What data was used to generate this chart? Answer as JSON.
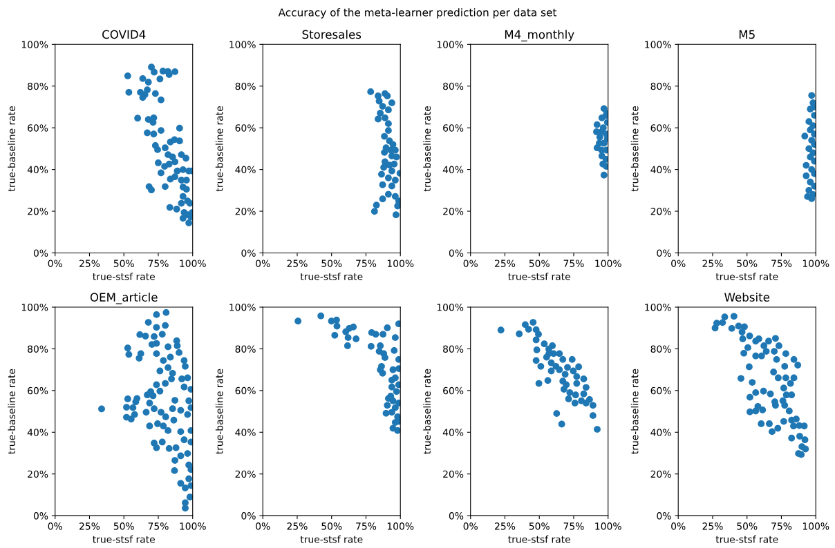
{
  "chart_data": [
    {
      "type": "scatter",
      "title": "COVID4",
      "xlabel": "true-stsf rate",
      "ylabel": "true-baseline rate",
      "color": "#1f77b4",
      "marker": "circle",
      "annotations": [
        "Accuracy of the meta-learner prediction per data set"
      ],
      "x": [
        52.8,
        53.6,
        70,
        72,
        78.4,
        82,
        82.9,
        87.1,
        76.2,
        63.7,
        67.8,
        62,
        65.3,
        67,
        63.7,
        72.9,
        77,
        60,
        67.8,
        71.7,
        71.2,
        67,
        71.7,
        77,
        90.5,
        72.9,
        74.5,
        80,
        83.8,
        86.8,
        90.5,
        82.1,
        85.4,
        91.8,
        95.1,
        75,
        79.6,
        82.9,
        87.1,
        77,
        88.8,
        93,
        97.2,
        99.7,
        83.8,
        87.1,
        91.8,
        95.5,
        68.3,
        70,
        80,
        93,
        95.5,
        93,
        96.3,
        98,
        83.4,
        88.4,
        91.8,
        93.8,
        96.3,
        98.8,
        93,
        97.2,
        99.7
      ],
      "values": [
        84.9,
        77,
        89.1,
        86.7,
        87.2,
        87,
        85.5,
        86.9,
        83.4,
        83.6,
        81.9,
        77,
        75.9,
        78.2,
        74.5,
        76.4,
        73.4,
        64.6,
        64,
        64.8,
        62.6,
        57.6,
        57,
        58.7,
        59.8,
        51.5,
        49.5,
        50.4,
        53.2,
        54.3,
        53.7,
        47.1,
        46,
        47.1,
        45.4,
        43.2,
        41.5,
        42.6,
        43.7,
        38.4,
        39.3,
        39.9,
        39.3,
        39.3,
        35.4,
        36.5,
        34.9,
        34.9,
        31.8,
        30.2,
        31.8,
        31.6,
        30.5,
        27.1,
        24.9,
        23.8,
        21.8,
        21,
        23.8,
        19.4,
        18.3,
        17.2,
        16.6,
        14.4,
        19.4
      ],
      "xlim": [
        0,
        100
      ],
      "ylim": [
        0,
        100
      ],
      "xticks": [
        {
          "value": 0,
          "label": "0%"
        },
        {
          "value": 25,
          "label": "25%"
        },
        {
          "value": 50,
          "label": "50%"
        },
        {
          "value": 75,
          "label": "75%"
        },
        {
          "value": 100,
          "label": "100%"
        }
      ],
      "yticks": [
        {
          "value": 0,
          "label": "0%"
        },
        {
          "value": 20,
          "label": "20%"
        },
        {
          "value": 40,
          "label": "40%"
        },
        {
          "value": 60,
          "label": "60%"
        },
        {
          "value": 80,
          "label": "80%"
        },
        {
          "value": 100,
          "label": "100%"
        }
      ]
    },
    {
      "type": "scatter",
      "title": "Storesales",
      "xlabel": "true-stsf rate",
      "ylabel": "true-baseline rate",
      "color": "#1f77b4",
      "marker": "circle",
      "x": [
        78.4,
        83.8,
        88.8,
        90.5,
        93.8,
        84.6,
        87.1,
        91.3,
        85.4,
        83.8,
        88.8,
        91.3,
        91.3,
        88.4,
        92.1,
        94.6,
        89.6,
        93,
        96.3,
        88.4,
        93.8,
        97.2,
        88.8,
        92.1,
        95.5,
        87.9,
        93.8,
        99.7,
        86.3,
        91.3,
        96.3,
        87.1,
        93.8,
        87.1,
        91.3,
        96.3,
        98.8,
        98,
        82.6,
        81.2,
        96.8
      ],
      "values": [
        77.3,
        75.3,
        76.4,
        75.3,
        72,
        72.8,
        70.3,
        68.6,
        67,
        64.2,
        64.8,
        62,
        58.7,
        55.9,
        53.7,
        52,
        50.4,
        49.3,
        49.3,
        48.2,
        46.5,
        46,
        43.7,
        42.1,
        42.6,
        41,
        39.3,
        38.2,
        37.7,
        36,
        34.9,
        32.7,
        32.1,
        25.9,
        28.1,
        27.1,
        24.9,
        22.5,
        22.9,
        19.9,
        18.3
      ],
      "xlim": [
        0,
        100
      ],
      "ylim": [
        0,
        100
      ],
      "xticks": [
        {
          "value": 0,
          "label": "0%"
        },
        {
          "value": 25,
          "label": "25%"
        },
        {
          "value": 50,
          "label": "50%"
        },
        {
          "value": 75,
          "label": "75%"
        },
        {
          "value": 100,
          "label": "100%"
        }
      ],
      "yticks": [
        {
          "value": 0,
          "label": "0%"
        },
        {
          "value": 20,
          "label": "20%"
        },
        {
          "value": 40,
          "label": "40%"
        },
        {
          "value": 60,
          "label": "60%"
        },
        {
          "value": 80,
          "label": "80%"
        },
        {
          "value": 100,
          "label": "100%"
        }
      ]
    },
    {
      "type": "scatter",
      "title": "M4_monthly",
      "xlabel": "true-stsf rate",
      "ylabel": "true-baseline rate",
      "color": "#1f77b4",
      "marker": "circle",
      "x": [
        97,
        95.5,
        98.5,
        92,
        99.5,
        91.6,
        95.3,
        98.7,
        97,
        92,
        95.3,
        98.7,
        95.5,
        98.5,
        96.2,
        98.7,
        97,
        93.6,
        99.5,
        94,
        96.5,
        99
      ],
      "values": [
        69.2,
        64.8,
        65.9,
        61.5,
        62.6,
        58.1,
        58.1,
        57,
        52.6,
        50.4,
        49.3,
        49.3,
        46.5,
        44.9,
        42.6,
        41.5,
        37.3,
        52.6,
        54.8,
        55.5,
        60,
        67
      ],
      "xlim": [
        0,
        100
      ],
      "ylim": [
        0,
        100
      ],
      "xticks": [
        {
          "value": 0,
          "label": "0%"
        },
        {
          "value": 25,
          "label": "25%"
        },
        {
          "value": 50,
          "label": "50%"
        },
        {
          "value": 75,
          "label": "75%"
        },
        {
          "value": 100,
          "label": "100%"
        }
      ],
      "yticks": [
        {
          "value": 0,
          "label": "0%"
        },
        {
          "value": 20,
          "label": "20%"
        },
        {
          "value": 40,
          "label": "40%"
        },
        {
          "value": 60,
          "label": "60%"
        },
        {
          "value": 80,
          "label": "80%"
        },
        {
          "value": 100,
          "label": "100%"
        }
      ]
    },
    {
      "type": "scatter",
      "title": "M5",
      "xlabel": "true-stsf rate",
      "ylabel": "true-baseline rate",
      "color": "#1f77b4",
      "marker": "circle",
      "x": [
        97,
        98,
        96,
        99,
        95,
        98,
        96,
        99,
        92,
        97,
        99,
        95,
        98,
        96,
        99,
        93,
        97,
        99,
        93,
        96,
        99,
        95,
        98,
        94,
        97,
        99
      ],
      "values": [
        75.5,
        72,
        69,
        66,
        63,
        61,
        59,
        57,
        56,
        54,
        52,
        50,
        48,
        46,
        44,
        42,
        40,
        38,
        37,
        34,
        32,
        30,
        28,
        27,
        26,
        70
      ],
      "xlim": [
        0,
        100
      ],
      "ylim": [
        0,
        100
      ],
      "xticks": [
        {
          "value": 0,
          "label": "0%"
        },
        {
          "value": 25,
          "label": "25%"
        },
        {
          "value": 50,
          "label": "50%"
        },
        {
          "value": 75,
          "label": "75%"
        },
        {
          "value": 100,
          "label": "100%"
        }
      ],
      "yticks": [
        {
          "value": 0,
          "label": "0%"
        },
        {
          "value": 20,
          "label": "20%"
        },
        {
          "value": 40,
          "label": "40%"
        },
        {
          "value": 60,
          "label": "60%"
        },
        {
          "value": 80,
          "label": "80%"
        },
        {
          "value": 100,
          "label": "100%"
        }
      ]
    },
    {
      "type": "scatter",
      "title": "OEM_article",
      "xlabel": "true-stsf rate",
      "ylabel": "true-baseline rate",
      "color": "#1f77b4",
      "marker": "circle",
      "x": [
        33.8,
        52.8,
        53.6,
        61.6,
        65.7,
        61.1,
        62.3,
        67.8,
        73.7,
        80.7,
        80.1,
        73.7,
        77.9,
        72,
        73.7,
        70.4,
        82.1,
        88.4,
        88.8,
        73.7,
        78.7,
        83.8,
        90.1,
        93.8,
        94.6,
        76.2,
        82.1,
        85.4,
        84.6,
        92.1,
        96.3,
        73.7,
        80.1,
        93.8,
        98.8,
        69.5,
        71.2,
        76.2,
        52.8,
        51.9,
        56.6,
        59.5,
        58.6,
        67,
        68.7,
        72,
        77,
        80.4,
        66.2,
        51.9,
        55.3,
        57.8,
        87.1,
        91.3,
        85.4,
        68.7,
        74.5,
        78.7,
        82.1,
        86.3,
        91.3,
        96.3,
        93.8,
        72,
        77.9,
        73.7,
        82.9,
        87.9,
        91.3,
        87.1,
        96.3,
        97.2,
        86.8,
        91.3,
        94.6,
        97.2,
        98.8,
        98,
        94.6,
        94.6,
        98.8,
        98.8,
        98.8,
        97.2,
        98.8
      ],
      "values": [
        51.2,
        80.4,
        77.3,
        86.8,
        86.1,
        75.5,
        77.7,
        92.7,
        96.4,
        97.4,
        91.2,
        90.3,
        87,
        85.9,
        82.6,
        82.1,
        81,
        83.9,
        81.5,
        77.7,
        74.4,
        76,
        78.2,
        74.4,
        71.6,
        69.4,
        71,
        68.3,
        65.6,
        65.6,
        66.1,
        62.8,
        63.4,
        61.7,
        60.6,
        59.5,
        57.5,
        59.7,
        56,
        52,
        51.8,
        56.2,
        54.6,
        57.9,
        54,
        51.3,
        49.6,
        47.4,
        49.6,
        47.2,
        46.3,
        48.5,
        55.3,
        50.5,
        51.3,
        43,
        44.1,
        43,
        40.8,
        45.8,
        40.3,
        48.5,
        36.4,
        34.8,
        35.3,
        32.6,
        32.2,
        32.6,
        28.7,
        26.5,
        29.8,
        24.3,
        21.6,
        15.5,
        13.3,
        17.7,
        14.4,
        8.9,
        6.2,
        3.6,
        40.8,
        35.3,
        51.8,
        55.1,
        22.1
      ],
      "xlim": [
        0,
        100
      ],
      "ylim": [
        0,
        100
      ],
      "xticks": [
        {
          "value": 0,
          "label": "0%"
        },
        {
          "value": 25,
          "label": "25%"
        },
        {
          "value": 50,
          "label": "50%"
        },
        {
          "value": 75,
          "label": "75%"
        },
        {
          "value": 100,
          "label": "100%"
        }
      ],
      "yticks": [
        {
          "value": 0,
          "label": "0%"
        },
        {
          "value": 20,
          "label": "20%"
        },
        {
          "value": 40,
          "label": "40%"
        },
        {
          "value": 60,
          "label": "60%"
        },
        {
          "value": 80,
          "label": "80%"
        },
        {
          "value": 100,
          "label": "100%"
        }
      ]
    },
    {
      "type": "scatter",
      "xlabel": "true-stsf rate",
      "ylabel": "true-baseline rate",
      "color": "#1f77b4",
      "marker": "circle",
      "x": [
        25.6,
        42.2,
        49.9,
        53.6,
        53.9,
        52.3,
        60.3,
        62.8,
        65.8,
        62,
        67.8,
        61.6,
        79.1,
        82.1,
        87.4,
        90.5,
        98.8,
        96.3,
        78.7,
        85.4,
        84.6,
        87.9,
        88.8,
        95.5,
        98.8,
        86.3,
        85.4,
        87.1,
        94.6,
        98.8,
        96.3,
        93.8,
        97.2,
        91.3,
        94.6,
        90.5,
        96.3,
        98.8,
        89.6,
        93.8,
        98,
        96.3,
        94.6,
        98,
        93,
        98.8,
        93.8,
        98.8
      ],
      "values": [
        93.3,
        95.8,
        93.3,
        93.8,
        90.9,
        86.5,
        88.2,
        89.8,
        90.5,
        85.4,
        84.8,
        81.5,
        87.8,
        87,
        87,
        90.1,
        92,
        85.4,
        81.2,
        81.5,
        78.8,
        77.7,
        75.8,
        79.2,
        74.9,
        71.6,
        70,
        68.3,
        70,
        70.5,
        66.1,
        61.7,
        59.5,
        56.2,
        55.1,
        52.9,
        51.8,
        54,
        49.1,
        49.6,
        47.4,
        44.7,
        41.9,
        40.8,
        57.3,
        62.8,
        65,
        45.2
      ],
      "xlim": [
        0,
        100
      ],
      "ylim": [
        0,
        100
      ],
      "xticks": [
        {
          "value": 0,
          "label": "0%"
        },
        {
          "value": 25,
          "label": "25%"
        },
        {
          "value": 50,
          "label": "50%"
        },
        {
          "value": 75,
          "label": "75%"
        },
        {
          "value": 100,
          "label": "100%"
        }
      ],
      "yticks": [
        {
          "value": 0,
          "label": "0%"
        },
        {
          "value": 20,
          "label": "20%"
        },
        {
          "value": 40,
          "label": "40%"
        },
        {
          "value": 60,
          "label": "60%"
        },
        {
          "value": 80,
          "label": "80%"
        },
        {
          "value": 100,
          "label": "100%"
        }
      ]
    },
    {
      "type": "scatter",
      "xlabel": "true-stsf rate",
      "ylabel": "true-baseline rate",
      "color": "#1f77b4",
      "marker": "circle",
      "x": [
        22.1,
        35.4,
        39.8,
        45.5,
        42.2,
        47.7,
        49.4,
        47.7,
        48.2,
        53.6,
        59.5,
        56.9,
        64.6,
        67.1,
        47.7,
        51.1,
        55.3,
        58.7,
        62.1,
        58.7,
        64.6,
        70.5,
        73.9,
        78.6,
        68.8,
        74.7,
        77.2,
        82.3,
        67.1,
        69.6,
        77.2,
        84,
        67.9,
        72.2,
        76.4,
        82.3,
        71.3,
        75.9,
        80.6,
        86.5,
        89,
        84,
        89,
        92.1,
        62.6,
        66.3,
        49.7,
        56.2,
        60.4,
        57
      ],
      "values": [
        89,
        87.2,
        91.6,
        92.7,
        89.4,
        89.2,
        87,
        84.3,
        79.5,
        82.4,
        81.5,
        79.9,
        77.7,
        74.9,
        74.4,
        71.6,
        76,
        73.3,
        71.6,
        69.4,
        70,
        71.1,
        74.9,
        71.4,
        67.8,
        69.4,
        66.7,
        65.6,
        64.5,
        62.8,
        63.4,
        61.5,
        60.6,
        59,
        57.9,
        58.4,
        56,
        54,
        55.1,
        55.7,
        52.9,
        54,
        48,
        41.4,
        49,
        43.9,
        63.4,
        64.8,
        77.7,
        77.7
      ],
      "xlim": [
        0,
        100
      ],
      "ylim": [
        0,
        100
      ],
      "xticks": [
        {
          "value": 0,
          "label": "0%"
        },
        {
          "value": 25,
          "label": "25%"
        },
        {
          "value": 50,
          "label": "50%"
        },
        {
          "value": 75,
          "label": "75%"
        },
        {
          "value": 100,
          "label": "100%"
        }
      ],
      "yticks": [
        {
          "value": 0,
          "label": "0%"
        },
        {
          "value": 20,
          "label": "20%"
        },
        {
          "value": 40,
          "label": "40%"
        },
        {
          "value": 60,
          "label": "60%"
        },
        {
          "value": 80,
          "label": "80%"
        },
        {
          "value": 100,
          "label": "100%"
        }
      ]
    },
    {
      "type": "scatter",
      "title": "Website",
      "xlabel": "true-stsf rate",
      "ylabel": "true-baseline rate",
      "color": "#1f77b4",
      "marker": "circle",
      "x": [
        26.8,
        28,
        33.8,
        40.5,
        32.2,
        38.9,
        43.9,
        48.1,
        46.4,
        46.9,
        51.9,
        50.6,
        56.3,
        58.6,
        56.3,
        60.6,
        62.3,
        65.7,
        70.7,
        73.2,
        64,
        69.8,
        78.2,
        84.1,
        86.9,
        77.4,
        71.5,
        69.3,
        72.7,
        78.2,
        81.6,
        84.1,
        76.7,
        47.7,
        51.6,
        45.6,
        53.8,
        56.3,
        52.1,
        62,
        67,
        52.1,
        56.3,
        61.3,
        57.9,
        70.2,
        76.1,
        78.6,
        82.4,
        80.7,
        70.7,
        77.4,
        60.3,
        66.2,
        68.2,
        72.4,
        76.7,
        82.4,
        85.8,
        83.8,
        88,
        91.6,
        82.4,
        88.3,
        92.1,
        89.9,
        92.5,
        87.4,
        89.4
      ],
      "values": [
        90,
        92.3,
        95.3,
        95.6,
        92.6,
        89.8,
        90.9,
        90.6,
        88.1,
        84.8,
        86.2,
        80.6,
        83.7,
        84.8,
        76.6,
        76.6,
        81.5,
        83.7,
        85,
        81.5,
        78.8,
        78.8,
        77.7,
        74.9,
        72.2,
        71.6,
        74.9,
        68.9,
        66.1,
        66.1,
        63.4,
        66.1,
        61.2,
        77.9,
        71.4,
        65.8,
        63.9,
        59,
        56.8,
        59.7,
        58.4,
        49.8,
        50.2,
        50.7,
        52.4,
        54.6,
        55.1,
        57.9,
        57.9,
        50.2,
        52.9,
        52.9,
        44.1,
        44.1,
        40.3,
        41.9,
        45.2,
        45.8,
        46.3,
        43,
        43.2,
        43,
        37.2,
        38.1,
        36.4,
        33.1,
        32,
        29.8,
        29.3
      ],
      "xlim": [
        0,
        100
      ],
      "ylim": [
        0,
        100
      ],
      "xticks": [
        {
          "value": 0,
          "label": "0%"
        },
        {
          "value": 25,
          "label": "25%"
        },
        {
          "value": 50,
          "label": "50%"
        },
        {
          "value": 75,
          "label": "75%"
        },
        {
          "value": 100,
          "label": "100%"
        }
      ],
      "yticks": [
        {
          "value": 0,
          "label": "0%"
        },
        {
          "value": 20,
          "label": "20%"
        },
        {
          "value": 40,
          "label": "40%"
        },
        {
          "value": 60,
          "label": "60%"
        },
        {
          "value": 80,
          "label": "80%"
        },
        {
          "value": 100,
          "label": "100%"
        }
      ]
    }
  ]
}
